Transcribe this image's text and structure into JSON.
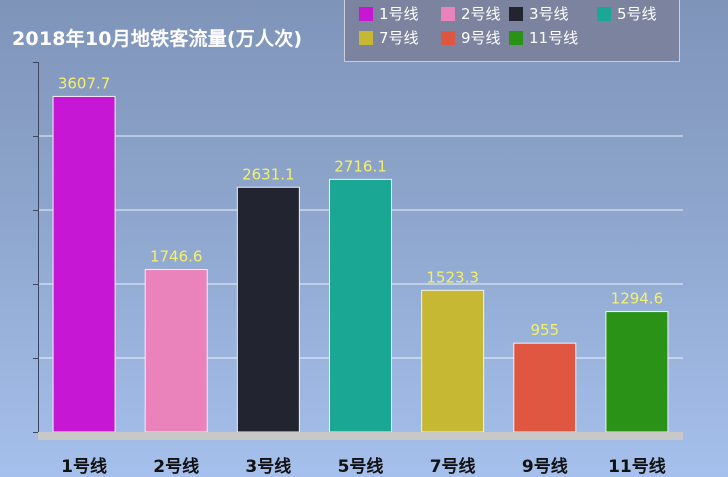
{
  "chart_data": {
    "type": "bar",
    "title": "2018年10月地铁客流量(万人次)",
    "categories": [
      "1号线",
      "2号线",
      "3号线",
      "5号线",
      "7号线",
      "9号线",
      "11号线"
    ],
    "values": [
      3607.7,
      1746.6,
      2631.1,
      2716.1,
      1523.3,
      955,
      1294.6
    ],
    "value_labels": [
      "3607.7",
      "1746.6",
      "2631.1",
      "2716.1",
      "1523.3",
      "955",
      "1294.6"
    ],
    "colors": [
      "#c517d4",
      "#ea82bb",
      "#22252f",
      "#1aa894",
      "#c7b834",
      "#e05741",
      "#2a9217"
    ],
    "ylim": [
      0,
      3600
    ],
    "grid": true,
    "legend_position": "top-right",
    "y_tick_labels_shown": false,
    "label_color": "#f5f06a"
  },
  "legend": {
    "items": [
      {
        "label": "1号线",
        "color": "#c517d4"
      },
      {
        "label": "2号线",
        "color": "#ea82bb"
      },
      {
        "label": "3号线",
        "color": "#22252f"
      },
      {
        "label": "5号线",
        "color": "#1aa894"
      },
      {
        "label": "7号线",
        "color": "#c7b834"
      },
      {
        "label": "9号线",
        "color": "#e05741"
      },
      {
        "label": "11号线",
        "color": "#2a9217"
      }
    ]
  }
}
